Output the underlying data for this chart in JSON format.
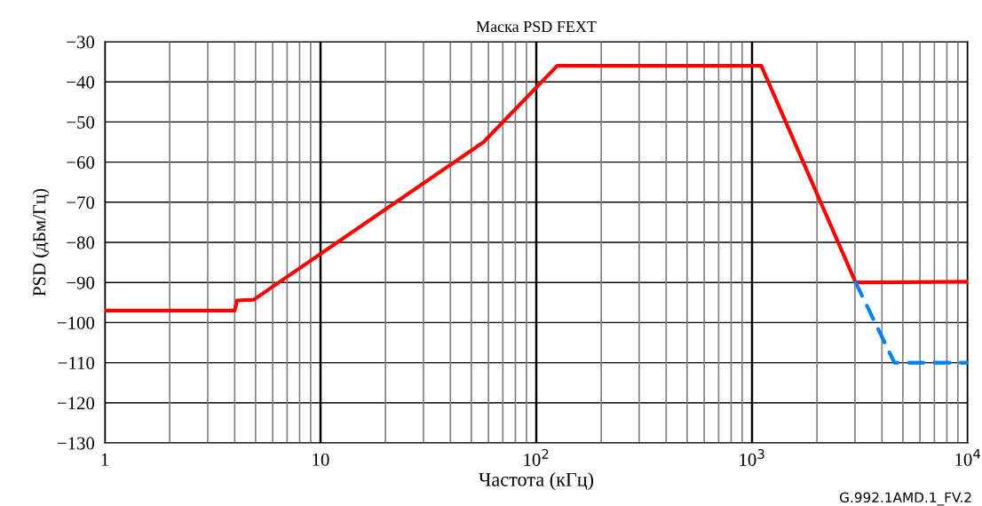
{
  "chart_data": {
    "type": "line",
    "title": "Маска PSD FEXT",
    "xlabel": "Частота (кГц)",
    "ylabel": "PSD (дБм/Гц)",
    "log": "x",
    "grid": true,
    "marker": "none",
    "xlim": [
      1,
      10000
    ],
    "xticks": [
      1,
      10,
      {
        "value": 100,
        "label": "10$^{2}$"
      },
      {
        "value": 1000,
        "label": "10$^{3}$"
      },
      {
        "value": 10000,
        "label": "10$^{4}$"
      }
    ],
    "ylim": [
      -130,
      -30
    ],
    "yticks": [
      -30,
      -40,
      -50,
      -60,
      -70,
      -80,
      -90,
      -100,
      -110,
      -120,
      -130
    ],
    "series": [
      {
        "color": "#ff0000",
        "line_style": "solid",
        "x": [
          1,
          4.0,
          4.1,
          4.9,
          57,
          125,
          1104,
          3020,
          10000
        ],
        "values": [
          -97,
          -97,
          -94.5,
          -94.3,
          -55,
          -36,
          -36,
          -90,
          -89.8
        ]
      },
      {
        "color": "#0080ff",
        "line_style": "dashed",
        "x": [
          3020,
          4570,
          10000
        ],
        "values": [
          -90,
          -110,
          -110
        ]
      }
    ],
    "annotations": [
      "G.992.1AMD.1_FV.2"
    ]
  }
}
